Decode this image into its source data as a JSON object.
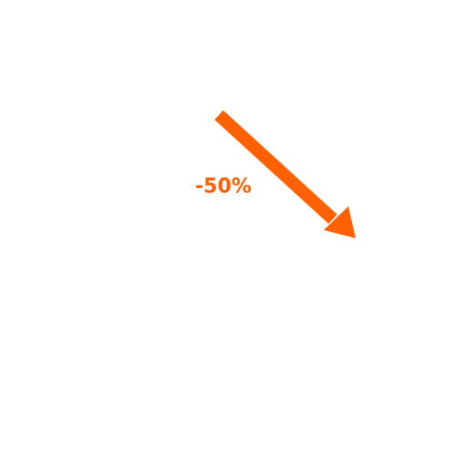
{
  "label": {
    "text": "-50%"
  },
  "arrow": {
    "icon": "arrow-down-right-icon"
  },
  "colors": {
    "accent": "#ff6000",
    "background": "#ffffff"
  }
}
